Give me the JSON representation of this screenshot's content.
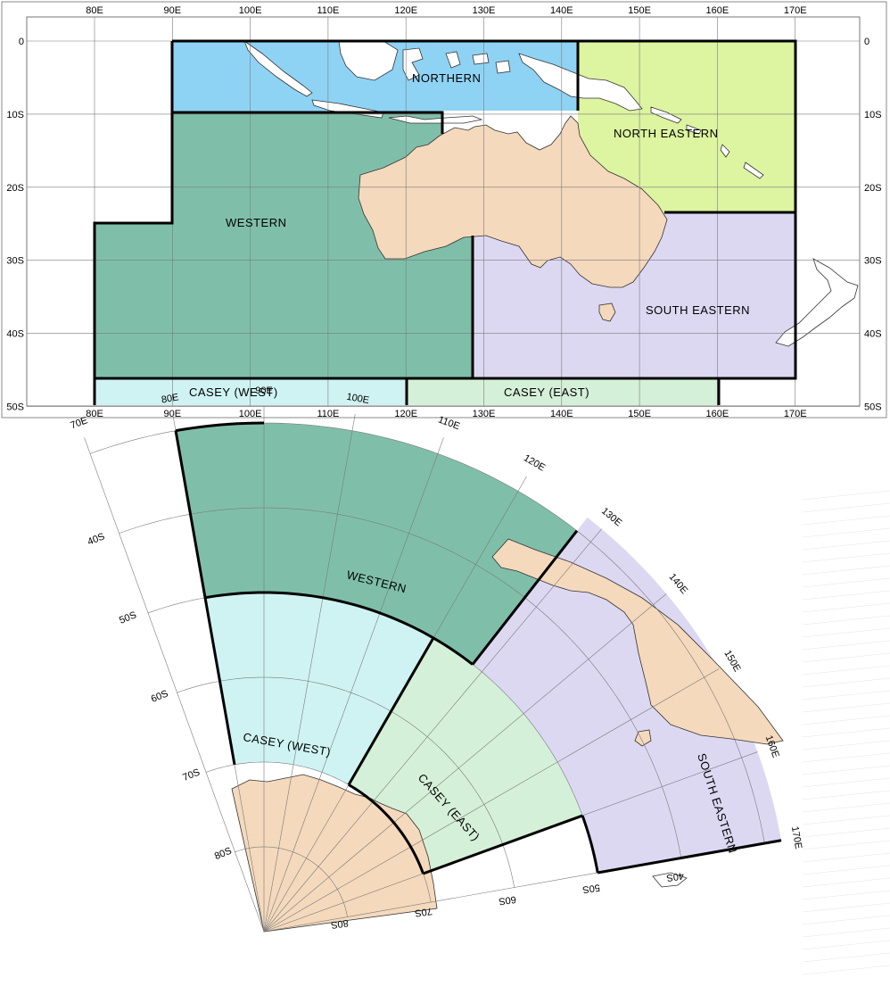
{
  "top_map": {
    "lon_labels": [
      "80E",
      "90E",
      "100E",
      "110E",
      "120E",
      "130E",
      "140E",
      "150E",
      "160E",
      "170E"
    ],
    "lat_labels": [
      "0",
      "10S",
      "20S",
      "30S",
      "40S",
      "50S"
    ],
    "regions": {
      "northern": "NORTHERN",
      "north_eastern": "NORTH EASTERN",
      "western": "WESTERN",
      "south_eastern": "SOUTH EASTERN",
      "casey_west": "CASEY (WEST)",
      "casey_east": "CASEY (EAST)"
    },
    "colors": {
      "northern": "#8fd3f4",
      "north_eastern": "#ddf4a0",
      "western": "#7fbfaa",
      "south_eastern": "#ddd8f2",
      "casey_west": "#cff3f3",
      "casey_east": "#d5f0d8",
      "land": "#f4d9bc"
    }
  },
  "bottom_map": {
    "lon_labels": [
      "70E",
      "80E",
      "90E",
      "100E",
      "110E",
      "120E",
      "130E",
      "140E",
      "150E",
      "160E",
      "170E"
    ],
    "lat_labels_left": [
      "40S",
      "50S",
      "60S",
      "70S",
      "80S"
    ],
    "lat_labels_bottom": [
      "80S",
      "70S",
      "60S",
      "50S",
      "40S"
    ],
    "regions": {
      "western": "WESTERN",
      "casey_west": "CASEY (WEST)",
      "casey_east": "CASEY (EAST)",
      "south_eastern": "SOUTH EASTERN"
    }
  }
}
